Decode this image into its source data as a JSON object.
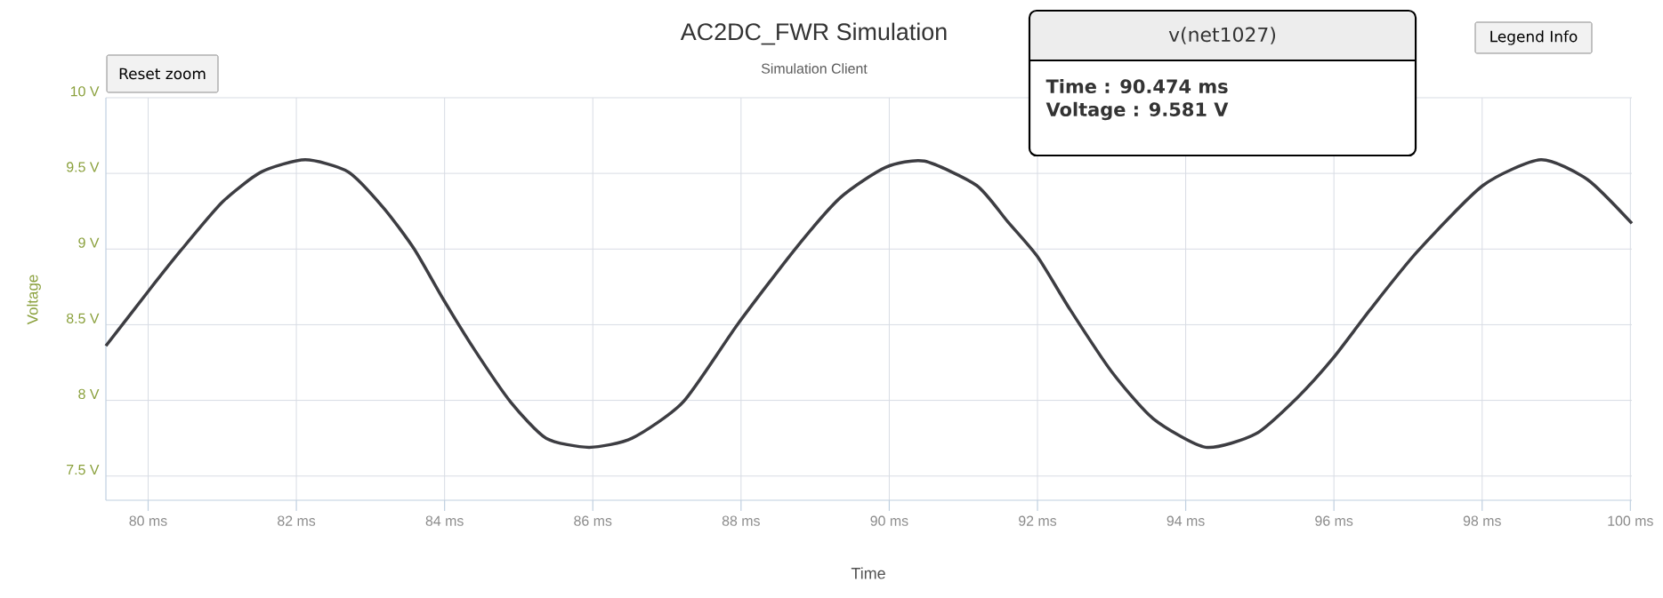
{
  "chart_data": {
    "type": "line",
    "title": "AC2DC_FWR Simulation",
    "subtitle": "Simulation Client",
    "xlabel": "Time",
    "ylabel": "Voltage",
    "x": [
      79.43,
      80.0,
      80.44,
      81.0,
      81.53,
      82.12,
      82.7,
      83.18,
      83.59,
      83.98,
      84.41,
      84.89,
      85.37,
      85.95,
      86.53,
      87.22,
      87.95,
      88.73,
      89.34,
      89.95,
      90.474,
      91.18,
      91.6,
      92.0,
      92.44,
      93.0,
      93.56,
      94.27,
      94.95,
      95.51,
      95.99,
      96.49,
      97.12,
      98.01,
      98.79,
      99.42,
      100.02
    ],
    "series": [
      {
        "color": "#3d3d42",
        "values": [
          8.36,
          8.72,
          8.99,
          9.31,
          9.51,
          9.59,
          9.51,
          9.27,
          9.0,
          8.67,
          8.33,
          7.99,
          7.75,
          7.69,
          7.75,
          7.99,
          8.5,
          9.0,
          9.34,
          9.54,
          9.581,
          9.42,
          9.18,
          8.95,
          8.6,
          8.19,
          7.88,
          7.69,
          7.78,
          8.02,
          8.28,
          8.6,
          8.98,
          9.42,
          9.59,
          9.46,
          9.17
        ]
      }
    ],
    "xlim": [
      79.43,
      100.02
    ],
    "ylim": [
      7.34,
      10
    ],
    "xticks": [
      {
        "value": 80,
        "label": "80 ms"
      },
      {
        "value": 82,
        "label": "82 ms"
      },
      {
        "value": 84,
        "label": "84 ms"
      },
      {
        "value": 86,
        "label": "86 ms"
      },
      {
        "value": 88,
        "label": "88 ms"
      },
      {
        "value": 90,
        "label": "90 ms"
      },
      {
        "value": 92,
        "label": "92 ms"
      },
      {
        "value": 94,
        "label": "94 ms"
      },
      {
        "value": 96,
        "label": "96 ms"
      },
      {
        "value": 98,
        "label": "98 ms"
      },
      {
        "value": 100,
        "label": "100 ms"
      }
    ],
    "yticks": [
      {
        "value": 7.5,
        "label": "7.5 V"
      },
      {
        "value": 8,
        "label": "8 V"
      },
      {
        "value": 8.5,
        "label": "8.5 V"
      },
      {
        "value": 9,
        "label": "9 V"
      },
      {
        "value": 9.5,
        "label": "9.5 V"
      },
      {
        "value": 10,
        "label": "10 V"
      }
    ],
    "grid": true,
    "marker": "none",
    "line_style": "solid",
    "annotations": [
      "v(net1027)",
      "Time : 90.474 ms",
      "Voltage : 9.581 V",
      "Reset zoom",
      "Legend Info"
    ]
  }
}
